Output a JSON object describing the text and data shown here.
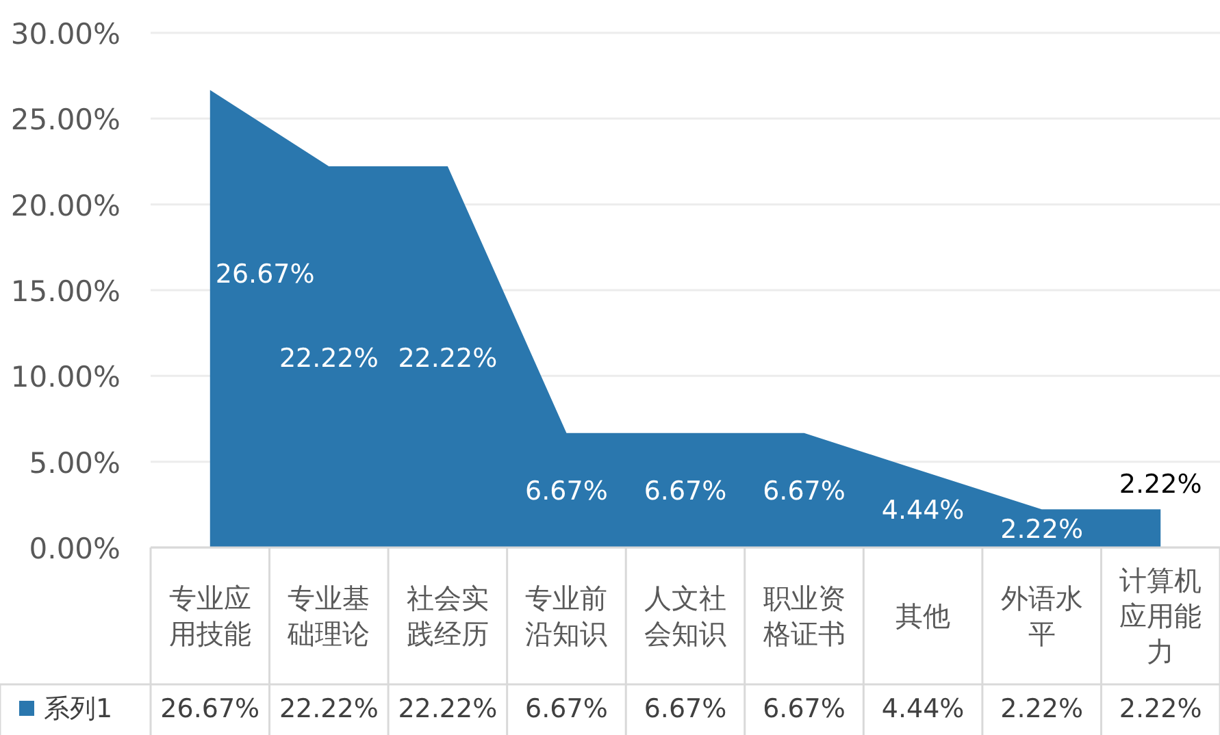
{
  "chart_data": {
    "type": "area",
    "categories": [
      "专业应用技能",
      "专业基础理论",
      "社会实践经历",
      "专业前沿知识",
      "人文社会知识",
      "职业资格证书",
      "其他",
      "外语水平",
      "计算机应用能力"
    ],
    "series": [
      {
        "name": "系列1",
        "color": "#2a77ae",
        "values": [
          26.67,
          22.22,
          22.22,
          6.67,
          6.67,
          6.67,
          4.44,
          2.22,
          2.22
        ],
        "value_labels": [
          "26.67%",
          "22.22%",
          "22.22%",
          "6.67%",
          "6.67%",
          "6.67%",
          "4.44%",
          "2.22%",
          "2.22%"
        ]
      }
    ],
    "ylim": [
      0,
      30
    ],
    "yticks": [
      {
        "value": 0,
        "label": "0.00%"
      },
      {
        "value": 5,
        "label": "5.00%"
      },
      {
        "value": 10,
        "label": "10.00%"
      },
      {
        "value": 15,
        "label": "15.00%"
      },
      {
        "value": 20,
        "label": "20.00%"
      },
      {
        "value": 25,
        "label": "25.00%"
      },
      {
        "value": 30,
        "label": "30.00%"
      }
    ],
    "grid": "y",
    "legend": "bottom"
  }
}
